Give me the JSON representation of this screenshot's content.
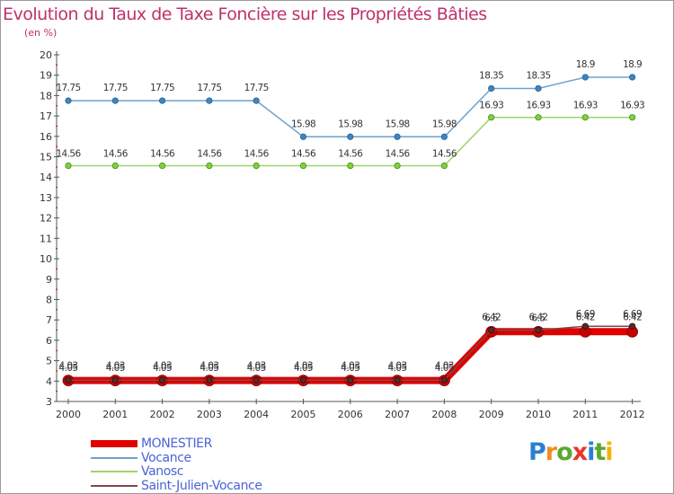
{
  "header": {
    "title": "Evolution du Taux de Taxe Foncière sur les Propriétés Bâties",
    "unit": "(en %)"
  },
  "logo": {
    "text": "Proxiti",
    "letters": [
      "P",
      "r",
      "o",
      "x",
      "i",
      "t",
      "i"
    ],
    "colors": [
      "#2a7fd4",
      "#f28c1e",
      "#5aa832",
      "#e8362a",
      "#2a7fd4",
      "#5aa832",
      "#f0b400"
    ]
  },
  "chart_data": {
    "type": "line",
    "title": "Evolution du Taux de Taxe Foncière sur les Propriétés Bâties",
    "ylabel": "(en %)",
    "xlabel": "",
    "x": [
      "2000",
      "2001",
      "2002",
      "2003",
      "2004",
      "2005",
      "2006",
      "2007",
      "2008",
      "2009",
      "2010",
      "2011",
      "2012"
    ],
    "ylim": [
      3,
      20
    ],
    "yticks": [
      "3",
      "4",
      "5",
      "6",
      "7",
      "8",
      "9",
      "10",
      "11",
      "12",
      "13",
      "14",
      "15",
      "16",
      "17",
      "18",
      "19",
      "20"
    ],
    "grid": false,
    "legend_position": "bottom-left",
    "series": [
      {
        "name": "MONESTIER",
        "color": "#e00000",
        "values": [
          4.03,
          4.03,
          4.03,
          4.03,
          4.03,
          4.03,
          4.03,
          4.03,
          4.03,
          6.42,
          6.42,
          6.42,
          6.42
        ],
        "labels": [
          "4.03",
          "4.03",
          "4.03",
          "4.03",
          "4.03",
          "4.03",
          "4.03",
          "4.03",
          "4.03",
          "6.42",
          "6.42",
          "6.42",
          "6.42"
        ]
      },
      {
        "name": "Vocance",
        "color": "#6ea2cf",
        "values": [
          17.75,
          17.75,
          17.75,
          17.75,
          17.75,
          15.98,
          15.98,
          15.98,
          15.98,
          18.35,
          18.35,
          18.9,
          18.9
        ],
        "labels": [
          "17.75",
          "17.75",
          "17.75",
          "17.75",
          "17.75",
          "15.98",
          "15.98",
          "15.98",
          "15.98",
          "18.35",
          "18.35",
          "18.9",
          "18.9"
        ]
      },
      {
        "name": "Vanosc",
        "color": "#9ed46a",
        "values": [
          14.56,
          14.56,
          14.56,
          14.56,
          14.56,
          14.56,
          14.56,
          14.56,
          14.56,
          16.93,
          16.93,
          16.93,
          16.93
        ],
        "labels": [
          "14.56",
          "14.56",
          "14.56",
          "14.56",
          "14.56",
          "14.56",
          "14.56",
          "14.56",
          "14.56",
          "16.93",
          "16.93",
          "16.93",
          "16.93"
        ]
      },
      {
        "name": "Saint-Julien-Vocance",
        "color": "#7a4a4a",
        "values": [
          4.05,
          4.05,
          4.05,
          4.05,
          4.05,
          4.05,
          4.05,
          4.05,
          4.05,
          6.5,
          6.5,
          6.69,
          6.69
        ],
        "labels": [
          "4.05",
          "4.05",
          "4.05",
          "4.05",
          "4.05",
          "4.05",
          "4.05",
          "4.05",
          "4.05",
          "6.5",
          "6.5",
          "6.69",
          "6.69"
        ]
      }
    ]
  }
}
